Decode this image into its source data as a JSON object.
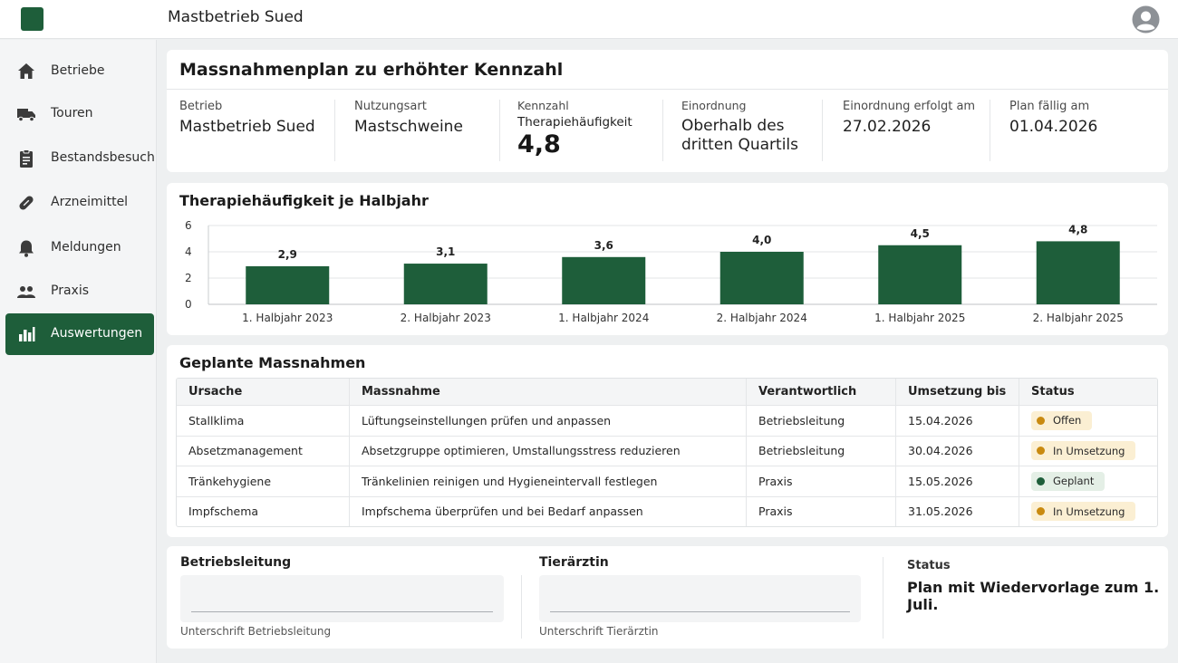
{
  "app": {
    "title": "Mastbetrieb Sued"
  },
  "colors": {
    "accent": "#1e5e3a",
    "status_open": "#c98a10",
    "status_progress": "#c98a10",
    "status_planned": "#1e5e3a"
  },
  "sidebar": {
    "items": [
      {
        "label": "Betriebe",
        "icon": "home-icon"
      },
      {
        "label": "Touren",
        "icon": "truck-icon"
      },
      {
        "label": "Bestandsbesuch",
        "icon": "clipboard-icon"
      },
      {
        "label": "Arzneimittel",
        "icon": "pill-icon"
      },
      {
        "label": "Meldungen",
        "icon": "bell-icon"
      },
      {
        "label": "Praxis",
        "icon": "people-icon"
      },
      {
        "label": "Auswertungen",
        "icon": "bar-chart-icon",
        "active": true
      }
    ]
  },
  "plan": {
    "title": "Massnahmenplan zu erhöhter Kennzahl",
    "betrieb_label": "Betrieb",
    "betrieb_value": "Mastbetrieb Sued",
    "nutzung_label": "Nutzungsart",
    "nutzung_value": "Mastschweine",
    "kennzahl_label": "Kennzahl",
    "kennzahl_name": "Therapiehäufigkeit",
    "kennzahl_value": "4,8",
    "einordnung_label": "Einordnung",
    "einordnung_line1": "Oberhalb des",
    "einordnung_line2": "dritten Quartils",
    "einordnung_date_label": "Einordnung erfolgt am",
    "einordnung_date_value": "27.02.2026",
    "faellig_label": "Plan fällig am",
    "faellig_value": "01.04.2026"
  },
  "chart_section": {
    "title": "Therapiehäufigkeit je Halbjahr"
  },
  "chart_data": {
    "type": "bar",
    "categories": [
      "1. Halbjahr 2023",
      "2. Halbjahr 2023",
      "1. Halbjahr 2024",
      "2. Halbjahr 2024",
      "1. Halbjahr 2025",
      "2. Halbjahr 2025"
    ],
    "values": [
      2.9,
      3.1,
      3.6,
      4.0,
      4.5,
      4.8
    ],
    "value_labels": [
      "2,9",
      "3,1",
      "3,6",
      "4,0",
      "4,5",
      "4,8"
    ],
    "yticks": [
      "0",
      "2",
      "4",
      "6"
    ],
    "ylim": [
      0,
      6
    ],
    "grid": true,
    "bar_color": "#1e5e3a"
  },
  "measures": {
    "title": "Geplante Massnahmen",
    "columns": [
      "Ursache",
      "Massnahme",
      "Verantwortlich",
      "Umsetzung bis",
      "Status"
    ],
    "rows": [
      {
        "ursache": "Stallklima",
        "massnahme": "Lüftungseinstellungen prüfen und anpassen",
        "verantwortlich": "Betriebsleitung",
        "bis": "15.04.2026",
        "status": "Offen",
        "status_kind": "open"
      },
      {
        "ursache": "Absetzmanagement",
        "massnahme": "Absetzgruppe optimieren, Umstallungsstress reduzieren",
        "verantwortlich": "Betriebsleitung",
        "bis": "30.04.2026",
        "status": "In Umsetzung",
        "status_kind": "progress"
      },
      {
        "ursache": "Tränkehygiene",
        "massnahme": "Tränkelinien reinigen und Hygieneintervall festlegen",
        "verantwortlich": "Praxis",
        "bis": "15.05.2026",
        "status": "Geplant",
        "status_kind": "planned"
      },
      {
        "ursache": "Impfschema",
        "massnahme": "Impfschema überprüfen und bei Bedarf anpassen",
        "verantwortlich": "Praxis",
        "bis": "31.05.2026",
        "status": "In Umsetzung",
        "status_kind": "progress"
      }
    ]
  },
  "signatures": {
    "left_label": "Betriebsleitung",
    "left_caption": "Unterschrift Betriebsleitung",
    "right_label": "Tierärztin",
    "right_caption": "Unterschrift Tierärztin",
    "status_label": "Status",
    "status_text": "Plan mit Wiedervorlage zum 1. Juli."
  }
}
